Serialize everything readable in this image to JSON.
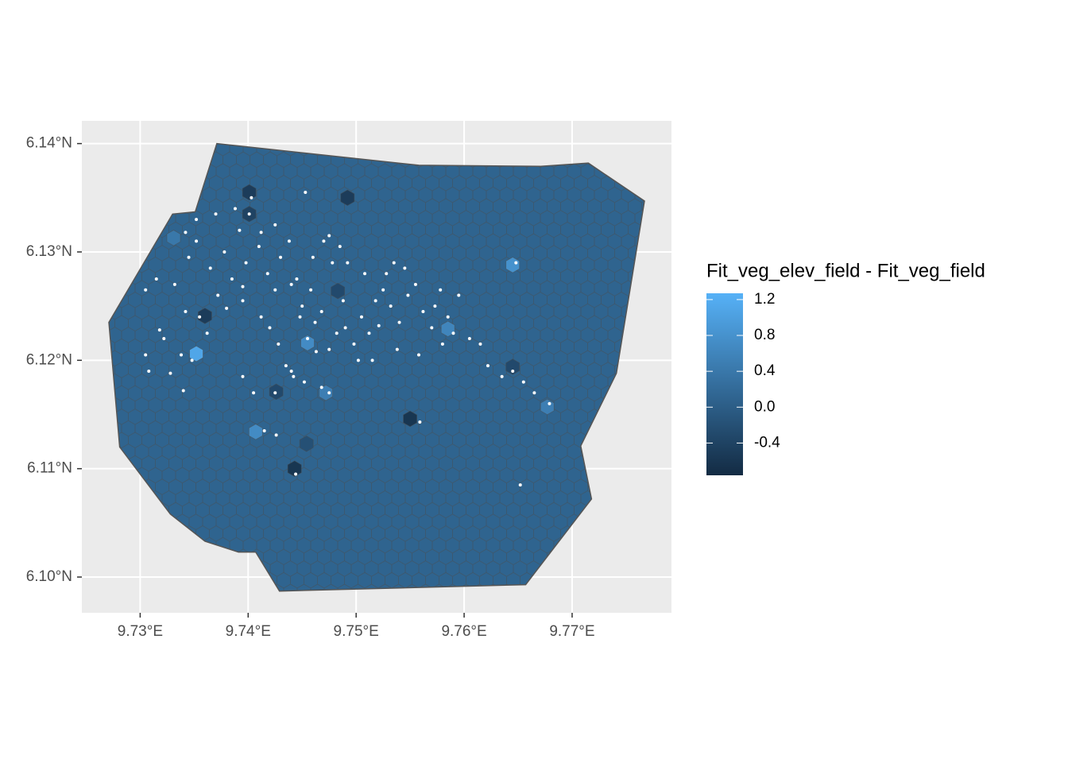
{
  "chart_data": {
    "type": "map",
    "xlim": [
      9.7246,
      9.7792
    ],
    "ylim": [
      6.0967,
      6.1421
    ],
    "xticks": [
      {
        "value": 9.73,
        "label": "9.73°E"
      },
      {
        "value": 9.74,
        "label": "9.74°E"
      },
      {
        "value": 9.75,
        "label": "9.75°E"
      },
      {
        "value": 9.76,
        "label": "9.76°E"
      },
      {
        "value": 9.77,
        "label": "9.77°E"
      }
    ],
    "yticks": [
      {
        "value": 6.1,
        "label": "6.10°N"
      },
      {
        "value": 6.11,
        "label": "6.11°N"
      },
      {
        "value": 6.12,
        "label": "6.12°N"
      },
      {
        "value": 6.13,
        "label": "6.13°N"
      },
      {
        "value": 6.14,
        "label": "6.14°N"
      }
    ],
    "grid": true,
    "boundary": {
      "lon": [
        9.7371,
        9.7558,
        9.7671,
        9.7715,
        9.7767,
        9.7741,
        9.7708,
        9.7718,
        9.7657,
        9.7429,
        9.7407,
        9.7391,
        9.736,
        9.7328,
        9.7281,
        9.7271,
        9.733,
        9.7351
      ],
      "lat": [
        6.14,
        6.138,
        6.1379,
        6.1382,
        6.1347,
        6.1188,
        6.1121,
        6.1072,
        6.0993,
        6.0987,
        6.1023,
        6.1023,
        6.1033,
        6.1058,
        6.112,
        6.1235,
        6.1335,
        6.1337
      ],
      "value": 0.1,
      "stroke": "#555555"
    },
    "hexagons": {
      "lon": [
        9.7352,
        9.7645,
        9.7407,
        9.7443,
        9.755,
        9.736,
        9.7401,
        9.7401,
        9.7492,
        9.7426,
        9.7455,
        9.7454,
        9.7645,
        9.7677,
        9.7331,
        9.7472,
        9.7585,
        9.7483
      ],
      "lat": [
        6.1206,
        6.1288,
        6.1134,
        6.11,
        6.1146,
        6.1241,
        6.1355,
        6.1335,
        6.135,
        6.1171,
        6.1216,
        6.1123,
        6.1194,
        6.1157,
        6.1313,
        6.117,
        6.1229,
        6.1264
      ],
      "values": [
        1.1,
        0.8,
        0.7,
        -0.6,
        -0.6,
        -0.5,
        -0.5,
        -0.4,
        -0.5,
        -0.3,
        0.7,
        -0.2,
        -0.3,
        0.5,
        0.4,
        0.5,
        0.6,
        -0.3
      ]
    },
    "points": {
      "color": "#ffffff",
      "lon": [
        9.7332,
        9.7345,
        9.7352,
        9.7365,
        9.7378,
        9.7385,
        9.7392,
        9.7401,
        9.7403,
        9.7398,
        9.741,
        9.7418,
        9.7425,
        9.743,
        9.7438,
        9.7445,
        9.745,
        9.7342,
        9.7355,
        9.7362,
        9.7372,
        9.7322,
        9.7315,
        9.7338,
        9.7348,
        9.738,
        9.7395,
        9.7412,
        9.742,
        9.7428,
        9.7435,
        9.7442,
        9.7455,
        9.7462,
        9.7468,
        9.7475,
        9.7482,
        9.749,
        9.7498,
        9.7505,
        9.7512,
        9.7518,
        9.7525,
        9.7532,
        9.754,
        9.7548,
        9.7555,
        9.7562,
        9.757,
        9.7578,
        9.7585,
        9.759,
        9.7595,
        9.7528,
        9.7545,
        9.7535,
        9.7508,
        9.7485,
        9.7478,
        9.747,
        9.746,
        9.7488,
        9.7458,
        9.744,
        9.7425,
        9.7412,
        9.7388,
        9.737,
        9.7352,
        9.7342,
        9.7305,
        9.7318,
        9.7328,
        9.734,
        9.7395,
        9.7405,
        9.7425,
        9.744,
        9.7452,
        9.7468,
        9.7475,
        9.7515,
        9.7538,
        9.7558,
        9.758,
        9.7605,
        9.7615,
        9.7622,
        9.7635,
        9.7645,
        9.7655,
        9.7665,
        9.7679,
        9.7648,
        9.7652,
        9.7559,
        9.7444,
        9.7426,
        9.7415,
        9.7453,
        9.7475,
        9.7492,
        9.7305,
        9.7308,
        9.7395,
        9.7448,
        9.7463,
        9.7502,
        9.7521,
        9.7573
      ],
      "lat": [
        6.127,
        6.1295,
        6.131,
        6.1285,
        6.13,
        6.1275,
        6.132,
        6.1335,
        6.135,
        6.129,
        6.1305,
        6.128,
        6.1265,
        6.1295,
        6.131,
        6.1275,
        6.125,
        6.1245,
        6.124,
        6.1225,
        6.126,
        6.122,
        6.1275,
        6.1205,
        6.12,
        6.1248,
        6.1255,
        6.124,
        6.123,
        6.1215,
        6.1195,
        6.1185,
        6.122,
        6.1235,
        6.1245,
        6.121,
        6.1225,
        6.123,
        6.1215,
        6.124,
        6.1225,
        6.1255,
        6.1265,
        6.125,
        6.1235,
        6.126,
        6.127,
        6.1245,
        6.123,
        6.1265,
        6.124,
        6.1225,
        6.126,
        6.128,
        6.1285,
        6.129,
        6.128,
        6.1305,
        6.129,
        6.131,
        6.1295,
        6.1255,
        6.1265,
        6.127,
        6.1325,
        6.1318,
        6.134,
        6.1335,
        6.133,
        6.1318,
        6.1265,
        6.1228,
        6.1188,
        6.1172,
        6.1185,
        6.117,
        6.117,
        6.119,
        6.118,
        6.1175,
        6.117,
        6.12,
        6.121,
        6.1205,
        6.1215,
        6.122,
        6.1215,
        6.1195,
        6.1185,
        6.119,
        6.118,
        6.117,
        6.116,
        6.129,
        6.1085,
        6.1143,
        6.1095,
        6.1131,
        6.1135,
        6.1355,
        6.1315,
        6.129,
        6.1205,
        6.119,
        6.1268,
        6.124,
        6.1208,
        6.12,
        6.1232,
        6.125
      ]
    },
    "colorbar": {
      "title": "Fit_veg_elev_field - Fit_veg_field",
      "lim": [
        -0.76,
        1.27
      ],
      "ticks": [
        {
          "value": -0.4,
          "label": "-0.4"
        },
        {
          "value": 0,
          "label": "0.0"
        },
        {
          "value": 0.4,
          "label": "0.4"
        },
        {
          "value": 0.8,
          "label": "0.8"
        },
        {
          "value": 1.2,
          "label": "1.2"
        }
      ],
      "color_low": "#132B43",
      "color_high": "#56B1F7"
    }
  }
}
